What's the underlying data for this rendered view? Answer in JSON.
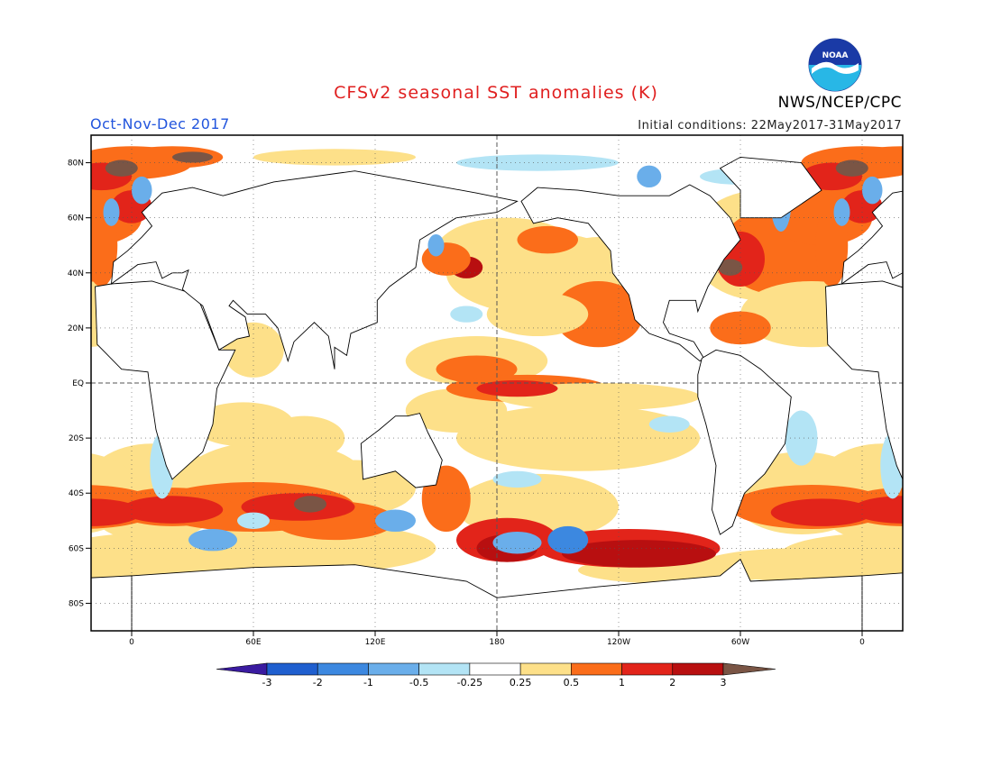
{
  "title": "CFSv2 seasonal SST anomalies (K)",
  "season": "Oct-Nov-Dec 2017",
  "initial_conditions": "Initial conditions: 22May2017-31May2017",
  "agency": "NWS/NCEP/CPC",
  "logo_text": "NOAA",
  "lat_labels": [
    "80N",
    "60N",
    "40N",
    "20N",
    "EQ",
    "20S",
    "40S",
    "60S",
    "80S"
  ],
  "lat_values": [
    80,
    60,
    40,
    20,
    0,
    -20,
    -40,
    -60,
    -80
  ],
  "lon_labels": [
    "0",
    "60E",
    "120E",
    "180",
    "120W",
    "60W",
    "0"
  ],
  "lon_values": [
    0,
    60,
    120,
    180,
    240,
    300,
    360
  ],
  "colorbar": {
    "labels": [
      "-3",
      "-2",
      "-1",
      "-0.5",
      "-0.25",
      "0.25",
      "0.5",
      "1",
      "2",
      "3"
    ],
    "colors": [
      "#3a1ba0",
      "#1f5fcf",
      "#3c88e0",
      "#6aaeea",
      "#b3e4f5",
      "#ffffff",
      "#fde089",
      "#fb6d1a",
      "#e2241a",
      "#b80f10",
      "#7a5545"
    ]
  },
  "anomaly_colors": {
    "warm_light": "#fde089",
    "warm_orange": "#fb6d1a",
    "warm_red": "#e2241a",
    "warm_dark": "#b80f10",
    "extreme": "#7a5545",
    "cool_light": "#b3e4f5",
    "cool_mid": "#6aaeea",
    "cool_blue": "#3c88e0"
  }
}
